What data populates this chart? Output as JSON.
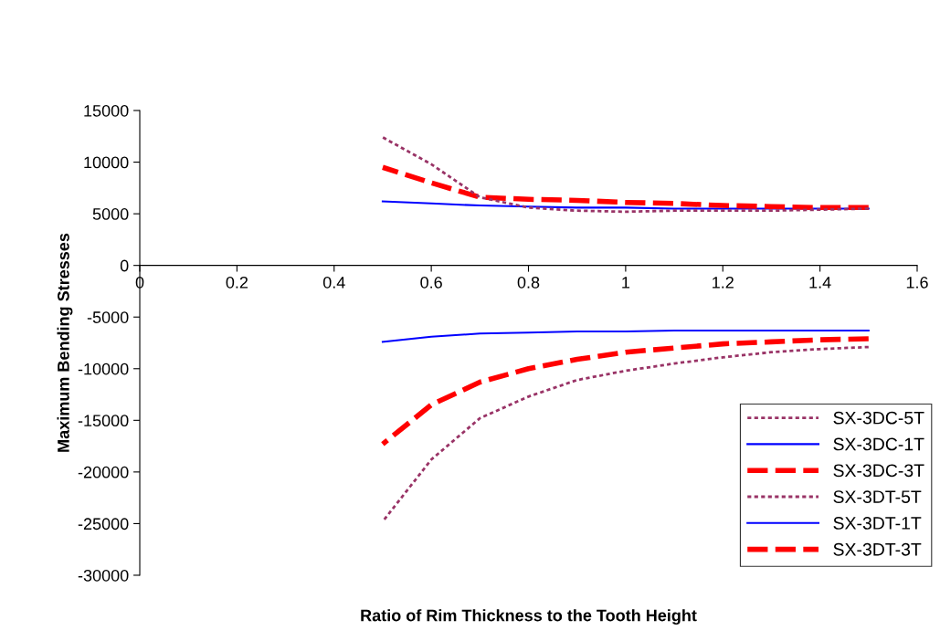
{
  "chart_data": {
    "type": "line",
    "xlabel": "Ratio of Rim Thickness to the Tooth Height",
    "ylabel": "Maximum Bending Stresses",
    "x": [
      0.5,
      0.6,
      0.7,
      0.8,
      0.9,
      1.0,
      1.1,
      1.2,
      1.3,
      1.4,
      1.5
    ],
    "xlim": [
      0,
      1.6
    ],
    "xticks": [
      0,
      0.2,
      0.4,
      0.6,
      0.8,
      1,
      1.2,
      1.4,
      1.6
    ],
    "ylim": [
      -30000,
      15000
    ],
    "yticks": [
      -30000,
      -25000,
      -20000,
      -15000,
      -10000,
      -5000,
      0,
      5000,
      10000,
      15000
    ],
    "grid": false,
    "legend": "right",
    "marker": "none",
    "series": [
      {
        "name": "SX-3DC-5T",
        "color": "#993366",
        "line_style": "dotted",
        "values": [
          -24800,
          -18800,
          -14800,
          -12700,
          -11100,
          -10200,
          -9500,
          -8900,
          -8400,
          -8100,
          -7900
        ]
      },
      {
        "name": "SX-3DC-1T",
        "color": "#0000ff",
        "line_style": "solid",
        "values": [
          -7400,
          -6900,
          -6600,
          -6500,
          -6400,
          -6400,
          -6300,
          -6300,
          -6300,
          -6300,
          -6300
        ]
      },
      {
        "name": "SX-3DC-3T",
        "color": "#ff0000",
        "line_style": "dashed",
        "values": [
          -17300,
          -13500,
          -11300,
          -10000,
          -9100,
          -8400,
          -8000,
          -7600,
          -7400,
          -7200,
          -7100
        ]
      },
      {
        "name": "SX-3DT-5T",
        "color": "#993366",
        "line_style": "dotted",
        "values": [
          12400,
          9800,
          6600,
          5600,
          5300,
          5200,
          5300,
          5300,
          5300,
          5400,
          5500
        ]
      },
      {
        "name": "SX-3DT-1T",
        "color": "#0000ff",
        "line_style": "solid",
        "values": [
          6200,
          6000,
          5800,
          5700,
          5600,
          5600,
          5500,
          5500,
          5500,
          5500,
          5500
        ]
      },
      {
        "name": "SX-3DT-3T",
        "color": "#ff0000",
        "line_style": "dashed",
        "values": [
          9500,
          8000,
          6600,
          6400,
          6300,
          6100,
          6000,
          5800,
          5700,
          5600,
          5600
        ]
      }
    ]
  }
}
